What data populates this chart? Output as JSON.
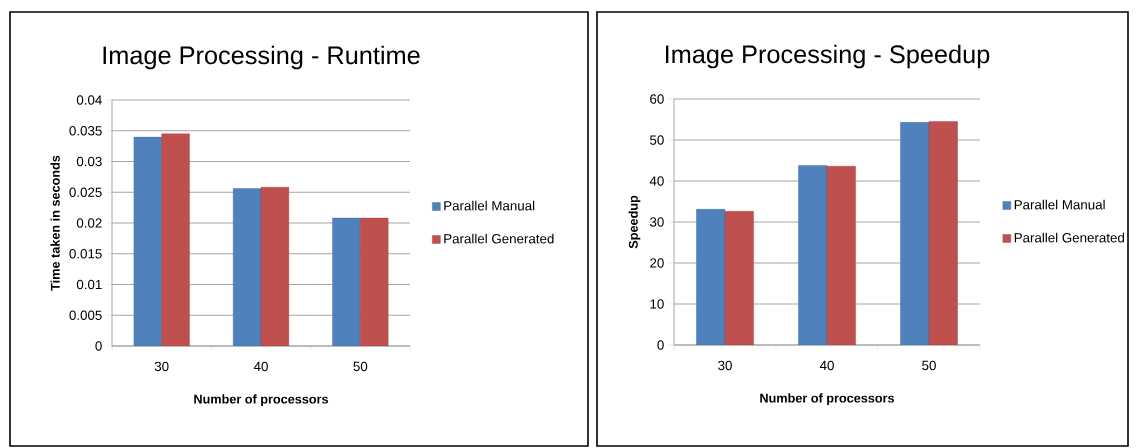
{
  "chart_data": [
    {
      "type": "bar",
      "title": "Image Processing - Runtime",
      "xlabel": "Number of processors",
      "ylabel": "Time taken in seconds",
      "categories": [
        "30",
        "40",
        "50"
      ],
      "series": [
        {
          "name": "Parallel Manual",
          "color": "#4f81bd",
          "values": [
            0.034,
            0.0256,
            0.0208
          ]
        },
        {
          "name": "Parallel Generated",
          "color": "#c0504d",
          "values": [
            0.0345,
            0.0258,
            0.0208
          ]
        }
      ],
      "ylim": [
        0,
        0.04
      ],
      "yticks": [
        0,
        0.005,
        0.01,
        0.015,
        0.02,
        0.025,
        0.03,
        0.035,
        0.04
      ],
      "grid": "y",
      "legend": "right"
    },
    {
      "type": "bar",
      "title": "Image Processing - Speedup",
      "xlabel": "Number of processors",
      "ylabel": "Speedup",
      "categories": [
        "30",
        "40",
        "50"
      ],
      "series": [
        {
          "name": "Parallel Manual",
          "color": "#4f81bd",
          "values": [
            33.1,
            43.8,
            54.3
          ]
        },
        {
          "name": "Parallel Generated",
          "color": "#c0504d",
          "values": [
            32.6,
            43.6,
            54.5
          ]
        }
      ],
      "ylim": [
        0,
        60
      ],
      "yticks": [
        0,
        10,
        20,
        30,
        40,
        50,
        60
      ],
      "grid": "y",
      "legend": "right"
    }
  ]
}
